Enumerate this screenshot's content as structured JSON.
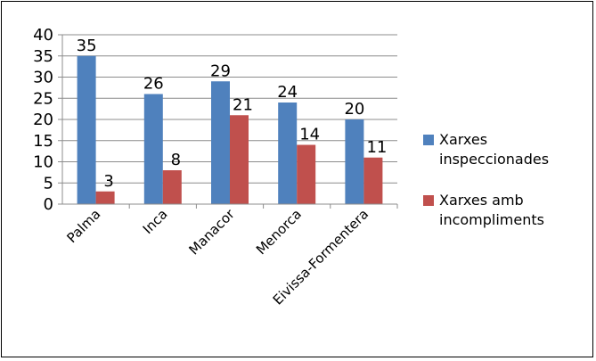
{
  "chart_data": {
    "type": "bar",
    "title": "",
    "xlabel": "",
    "ylabel": "",
    "categories": [
      "Palma",
      "Inca",
      "Manacor",
      "Menorca",
      "Eivissa-Formentera"
    ],
    "series": [
      {
        "name": "Xarxes inspeccionades",
        "color": "#4F81BD",
        "values": [
          35,
          26,
          29,
          24,
          20
        ]
      },
      {
        "name": "Xarxes amb incompliments",
        "color": "#C0504D",
        "values": [
          3,
          8,
          21,
          14,
          11
        ]
      }
    ],
    "ylim": [
      0,
      40
    ],
    "yticks": [
      0,
      5,
      10,
      15,
      20,
      25,
      30,
      35,
      40
    ],
    "grid": true,
    "legend_position": "right",
    "data_labels": true
  }
}
